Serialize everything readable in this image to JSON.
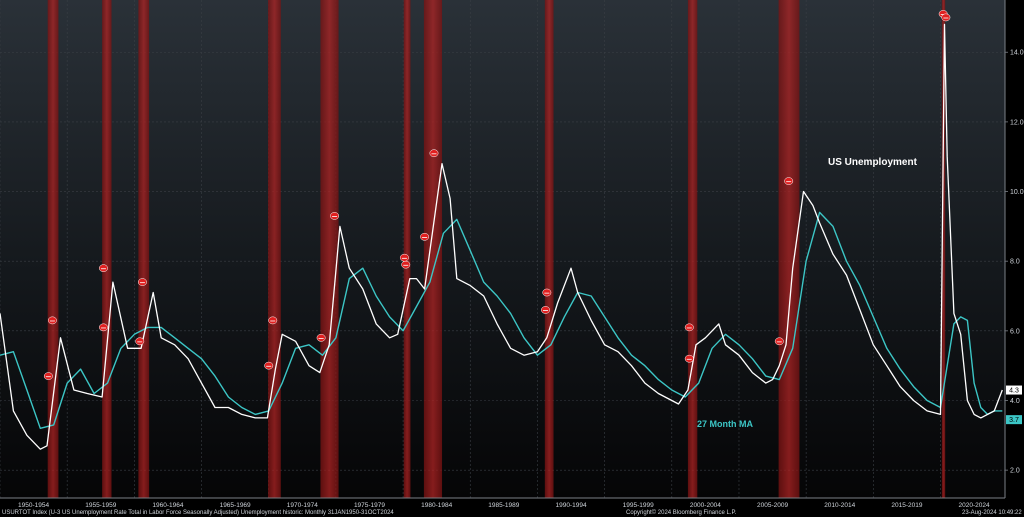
{
  "chart_data": {
    "type": "line",
    "title": "",
    "xlabel": "",
    "ylabel": "",
    "ylim": [
      1.2,
      15.5
    ],
    "xlim": [
      1950.0,
      2024.8
    ],
    "y_ticks": [
      2.0,
      4.0,
      6.0,
      8.0,
      10.0,
      12.0,
      14.0
    ],
    "y_tick_labels": [
      "2.0",
      "4.0",
      "6.0",
      "8.0",
      "10.0",
      "12.0",
      "14.0"
    ],
    "x_tick_labels": [
      "1950-1954",
      "1955-1959",
      "1960-1964",
      "1965-1969",
      "1970-1974",
      "1975-1979",
      "1980-1984",
      "1985-1989",
      "1990-1994",
      "1995-1999",
      "2000-2004",
      "2005-2009",
      "2010-2014",
      "2015-2019",
      "2020-2024"
    ],
    "annotations": {
      "series_label": "US Unemployment",
      "ma_label": "27 Month MA"
    },
    "series": [
      {
        "name": "US Unemployment",
        "color": "#ffffff",
        "x": [
          1950.0,
          1951.0,
          1952.0,
          1953.0,
          1953.5,
          1954.5,
          1955.5,
          1956.5,
          1957.6,
          1958.4,
          1959.5,
          1960.5,
          1961.4,
          1962.0,
          1963.0,
          1964.0,
          1965.0,
          1966.0,
          1967.0,
          1968.0,
          1969.0,
          1969.9,
          1970.5,
          1971.0,
          1972.0,
          1973.0,
          1973.8,
          1974.5,
          1975.3,
          1976.0,
          1977.0,
          1978.0,
          1979.0,
          1979.6,
          1980.5,
          1981.0,
          1981.6,
          1982.9,
          1983.5,
          1984.0,
          1985.0,
          1986.0,
          1987.0,
          1988.0,
          1989.0,
          1990.0,
          1990.7,
          1991.5,
          1992.5,
          1993.0,
          1994.0,
          1995.0,
          1996.0,
          1997.0,
          1998.0,
          1999.0,
          2000.0,
          2000.5,
          2001.2,
          2001.8,
          2002.5,
          2003.5,
          2004.0,
          2005.0,
          2006.0,
          2007.0,
          2007.5,
          2008.0,
          2008.5,
          2009.0,
          2009.8,
          2010.5,
          2011.0,
          2012.0,
          2013.0,
          2014.0,
          2015.0,
          2016.0,
          2017.0,
          2018.0,
          2019.0,
          2020.0,
          2020.3,
          2020.5,
          2021.0,
          2021.5,
          2022.0,
          2022.5,
          2023.0,
          2023.5,
          2024.0,
          2024.6
        ],
        "values": [
          6.5,
          3.7,
          3.0,
          2.6,
          2.7,
          5.8,
          4.3,
          4.2,
          4.1,
          7.4,
          5.5,
          5.5,
          7.1,
          5.8,
          5.6,
          5.2,
          4.5,
          3.8,
          3.8,
          3.6,
          3.5,
          3.5,
          4.9,
          5.9,
          5.7,
          5.0,
          4.8,
          5.6,
          9.0,
          7.8,
          7.2,
          6.2,
          5.8,
          5.9,
          7.5,
          7.5,
          7.2,
          10.8,
          9.8,
          7.5,
          7.3,
          7.0,
          6.2,
          5.5,
          5.3,
          5.4,
          5.8,
          6.8,
          7.8,
          7.1,
          6.3,
          5.6,
          5.4,
          5.0,
          4.5,
          4.2,
          4.0,
          3.9,
          4.3,
          5.6,
          5.8,
          6.2,
          5.6,
          5.3,
          4.8,
          4.5,
          4.6,
          5.0,
          5.6,
          7.8,
          10.0,
          9.6,
          9.1,
          8.2,
          7.6,
          6.6,
          5.6,
          5.0,
          4.4,
          4.0,
          3.7,
          3.6,
          14.8,
          11.0,
          6.5,
          5.9,
          4.0,
          3.6,
          3.5,
          3.6,
          3.7,
          4.3
        ]
      },
      {
        "name": "27 Month MA",
        "color": "#3cc6c6",
        "x": [
          1950.0,
          1951.0,
          1952.0,
          1953.0,
          1954.0,
          1955.0,
          1956.0,
          1957.0,
          1958.0,
          1959.0,
          1960.0,
          1961.0,
          1962.0,
          1963.0,
          1964.0,
          1965.0,
          1966.0,
          1967.0,
          1968.0,
          1969.0,
          1970.0,
          1971.0,
          1972.0,
          1973.0,
          1974.0,
          1975.0,
          1976.0,
          1977.0,
          1978.0,
          1979.0,
          1980.0,
          1981.0,
          1982.0,
          1983.0,
          1984.0,
          1985.0,
          1986.0,
          1987.0,
          1988.0,
          1989.0,
          1990.0,
          1991.0,
          1992.0,
          1993.0,
          1994.0,
          1995.0,
          1996.0,
          1997.0,
          1998.0,
          1999.0,
          2000.0,
          2001.0,
          2002.0,
          2003.0,
          2004.0,
          2005.0,
          2006.0,
          2007.0,
          2008.0,
          2009.0,
          2010.0,
          2011.0,
          2012.0,
          2013.0,
          2014.0,
          2015.0,
          2016.0,
          2017.0,
          2018.0,
          2019.0,
          2020.0,
          2020.5,
          2021.0,
          2021.5,
          2022.0,
          2022.5,
          2023.0,
          2023.5,
          2024.0,
          2024.6
        ],
        "values": [
          5.3,
          5.4,
          4.3,
          3.2,
          3.3,
          4.5,
          4.9,
          4.2,
          4.5,
          5.5,
          5.9,
          6.1,
          6.1,
          5.8,
          5.5,
          5.2,
          4.7,
          4.1,
          3.8,
          3.6,
          3.7,
          4.5,
          5.5,
          5.6,
          5.3,
          5.8,
          7.5,
          7.8,
          7.0,
          6.4,
          6.0,
          6.7,
          7.4,
          8.8,
          9.2,
          8.3,
          7.4,
          7.0,
          6.5,
          5.8,
          5.3,
          5.6,
          6.4,
          7.1,
          7.0,
          6.4,
          5.8,
          5.3,
          5.0,
          4.6,
          4.3,
          4.1,
          4.5,
          5.5,
          5.9,
          5.6,
          5.2,
          4.7,
          4.6,
          5.5,
          8.0,
          9.4,
          9.0,
          8.0,
          7.3,
          6.4,
          5.5,
          4.9,
          4.4,
          4.0,
          3.8,
          5.0,
          6.2,
          6.4,
          6.3,
          4.5,
          3.8,
          3.6,
          3.7,
          3.7
        ]
      }
    ],
    "recession_bands": [
      [
        1953.55,
        1954.35
      ],
      [
        1957.6,
        1958.3
      ],
      [
        1960.3,
        1961.1
      ],
      [
        1969.95,
        1970.9
      ],
      [
        1973.85,
        1975.2
      ],
      [
        1980.05,
        1980.55
      ],
      [
        1981.55,
        1982.9
      ],
      [
        1990.55,
        1991.2
      ],
      [
        2001.2,
        2001.9
      ],
      [
        2007.95,
        2009.5
      ],
      [
        2020.1,
        2020.35
      ]
    ],
    "markers": [
      [
        1953.6,
        4.7
      ],
      [
        1953.9,
        6.3
      ],
      [
        1957.7,
        6.1
      ],
      [
        1957.7,
        7.8
      ],
      [
        1960.4,
        5.7
      ],
      [
        1960.6,
        7.4
      ],
      [
        1970.0,
        5.0
      ],
      [
        1970.3,
        6.3
      ],
      [
        1973.9,
        5.8
      ],
      [
        1974.9,
        9.3
      ],
      [
        1980.2,
        7.9
      ],
      [
        1980.1,
        8.1
      ],
      [
        1981.6,
        8.7
      ],
      [
        1982.3,
        11.1
      ],
      [
        1990.6,
        6.6
      ],
      [
        1990.7,
        7.1
      ],
      [
        2001.3,
        5.2
      ],
      [
        2001.3,
        6.1
      ],
      [
        2008.0,
        5.7
      ],
      [
        2008.7,
        10.3
      ],
      [
        2020.2,
        15.1
      ],
      [
        2020.4,
        15.0
      ]
    ],
    "last_value_labels": {
      "unemployment": "4.3",
      "ma": "3.7"
    },
    "colors": {
      "background": "#000000",
      "band": "#a01c1c",
      "marker": "#e02020",
      "unemployment_line": "#ffffff",
      "ma_line": "#3cc6c6",
      "ma_label": "#3cc6c6",
      "grid": "#3a3f45"
    }
  },
  "footer": {
    "left": "USURTOT Index (U-3 US Unemployment Rate Total in Labor Force Seasonally Adjusted) Unemployment historic: Monthly 31JAN1950-31OCT2024",
    "center": "Copyright© 2024 Bloomberg Finance L.P.",
    "right": "23-Aug-2024 10:49:22"
  }
}
